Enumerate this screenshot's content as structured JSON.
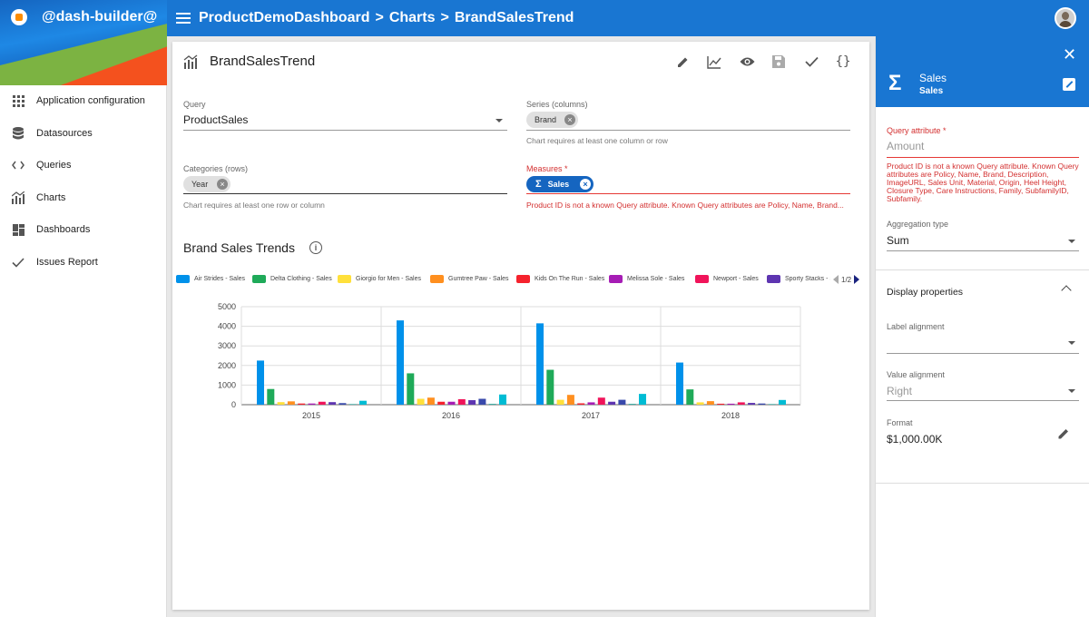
{
  "app": {
    "name": "@dash-builder@"
  },
  "breadcrumb": [
    "ProductDemoDashboard",
    ">",
    "Charts",
    ">",
    "BrandSalesTrend"
  ],
  "sidebar": {
    "items": [
      {
        "label": "Application configuration",
        "icon": "grid-icon"
      },
      {
        "label": "Datasources",
        "icon": "database-icon"
      },
      {
        "label": "Queries",
        "icon": "code-icon"
      },
      {
        "label": "Charts",
        "icon": "chart-icon"
      },
      {
        "label": "Dashboards",
        "icon": "dashboard-icon"
      },
      {
        "label": "Issues Report",
        "icon": "check-icon"
      }
    ]
  },
  "component": {
    "title": "BrandSalesTrend",
    "tools": [
      "edit-icon",
      "line-chart-icon",
      "eye-icon",
      "save-icon",
      "check-icon",
      "braces-icon"
    ]
  },
  "form": {
    "query_label": "Query",
    "query_value": "ProductSales",
    "series_label": "Series (columns)",
    "series_chip": "Brand",
    "series_help": "Chart requires at least one column or row",
    "categories_label": "Categories (rows)",
    "categories_chip": "Year",
    "categories_help": "Chart requires at least one row or column",
    "measures_label": "Measures *",
    "measures_chip": "Sales",
    "measures_chip_icon": "Σ",
    "measures_error": "Product ID is not a known Query attribute. Known Query attributes are Policy, Name, Brand..."
  },
  "chart_data": {
    "type": "bar",
    "title": "Brand Sales Trends",
    "categories": [
      "2015",
      "2016",
      "2017",
      "2018"
    ],
    "ylim": [
      0,
      5000
    ],
    "yticks": [
      0,
      1000,
      2000,
      3000,
      4000,
      5000
    ],
    "grid": true,
    "legend_position": "top",
    "legend_page": "1/2",
    "series": [
      {
        "name": "Air Strides - Sales",
        "color": "#0091ea",
        "values": [
          2250,
          4300,
          4150,
          2150
        ]
      },
      {
        "name": "Delta Clothing - Sales",
        "color": "#1faa59",
        "values": [
          800,
          1600,
          1780,
          780
        ]
      },
      {
        "name": "Giorgio for Men - Sales",
        "color": "#ffe03b",
        "values": [
          130,
          300,
          250,
          120
        ]
      },
      {
        "name": "Gumtree Paw - Sales",
        "color": "#ff8f1f",
        "values": [
          170,
          360,
          500,
          180
        ]
      },
      {
        "name": "Kids On The Run - Sales",
        "color": "#f5222d",
        "values": [
          60,
          150,
          70,
          50
        ]
      },
      {
        "name": "Melissa Sole - Sales",
        "color": "#a61db5",
        "values": [
          60,
          150,
          120,
          50
        ]
      },
      {
        "name": "Newport - Sales",
        "color": "#f0145a",
        "values": [
          150,
          280,
          360,
          120
        ]
      },
      {
        "name": "Sporty Stacks - Sales",
        "color": "#5e35b1",
        "values": [
          130,
          230,
          150,
          90
        ]
      },
      {
        "name": "",
        "color": "#3949ab",
        "values": [
          80,
          300,
          250,
          60
        ]
      },
      {
        "name": "",
        "color": "#26a69a",
        "values": [
          30,
          40,
          40,
          30
        ]
      },
      {
        "name": "",
        "color": "#00bcd4",
        "values": [
          200,
          520,
          550,
          240
        ]
      }
    ]
  },
  "right_panel": {
    "sigma": "Σ",
    "title": "Sales",
    "subtitle": "Sales",
    "query_attribute_label": "Query attribute *",
    "query_attribute_placeholder": "Amount",
    "query_attribute_error": "Product ID is not a known Query attribute. Known Query attributes are Policy, Name, Brand, Description, ImageURL, Sales Unit, Material, Origin, Heel Height, Closure Type, Care Instructions, Family, SubfamilyID, Subfamily.",
    "aggregation_label": "Aggregation type",
    "aggregation_value": "Sum",
    "display_properties": "Display properties",
    "label_alignment_label": "Label alignment",
    "label_alignment_value": "",
    "value_alignment_label": "Value alignment",
    "value_alignment_value": "Right",
    "format_label": "Format",
    "format_value": "$1,000.00K"
  }
}
